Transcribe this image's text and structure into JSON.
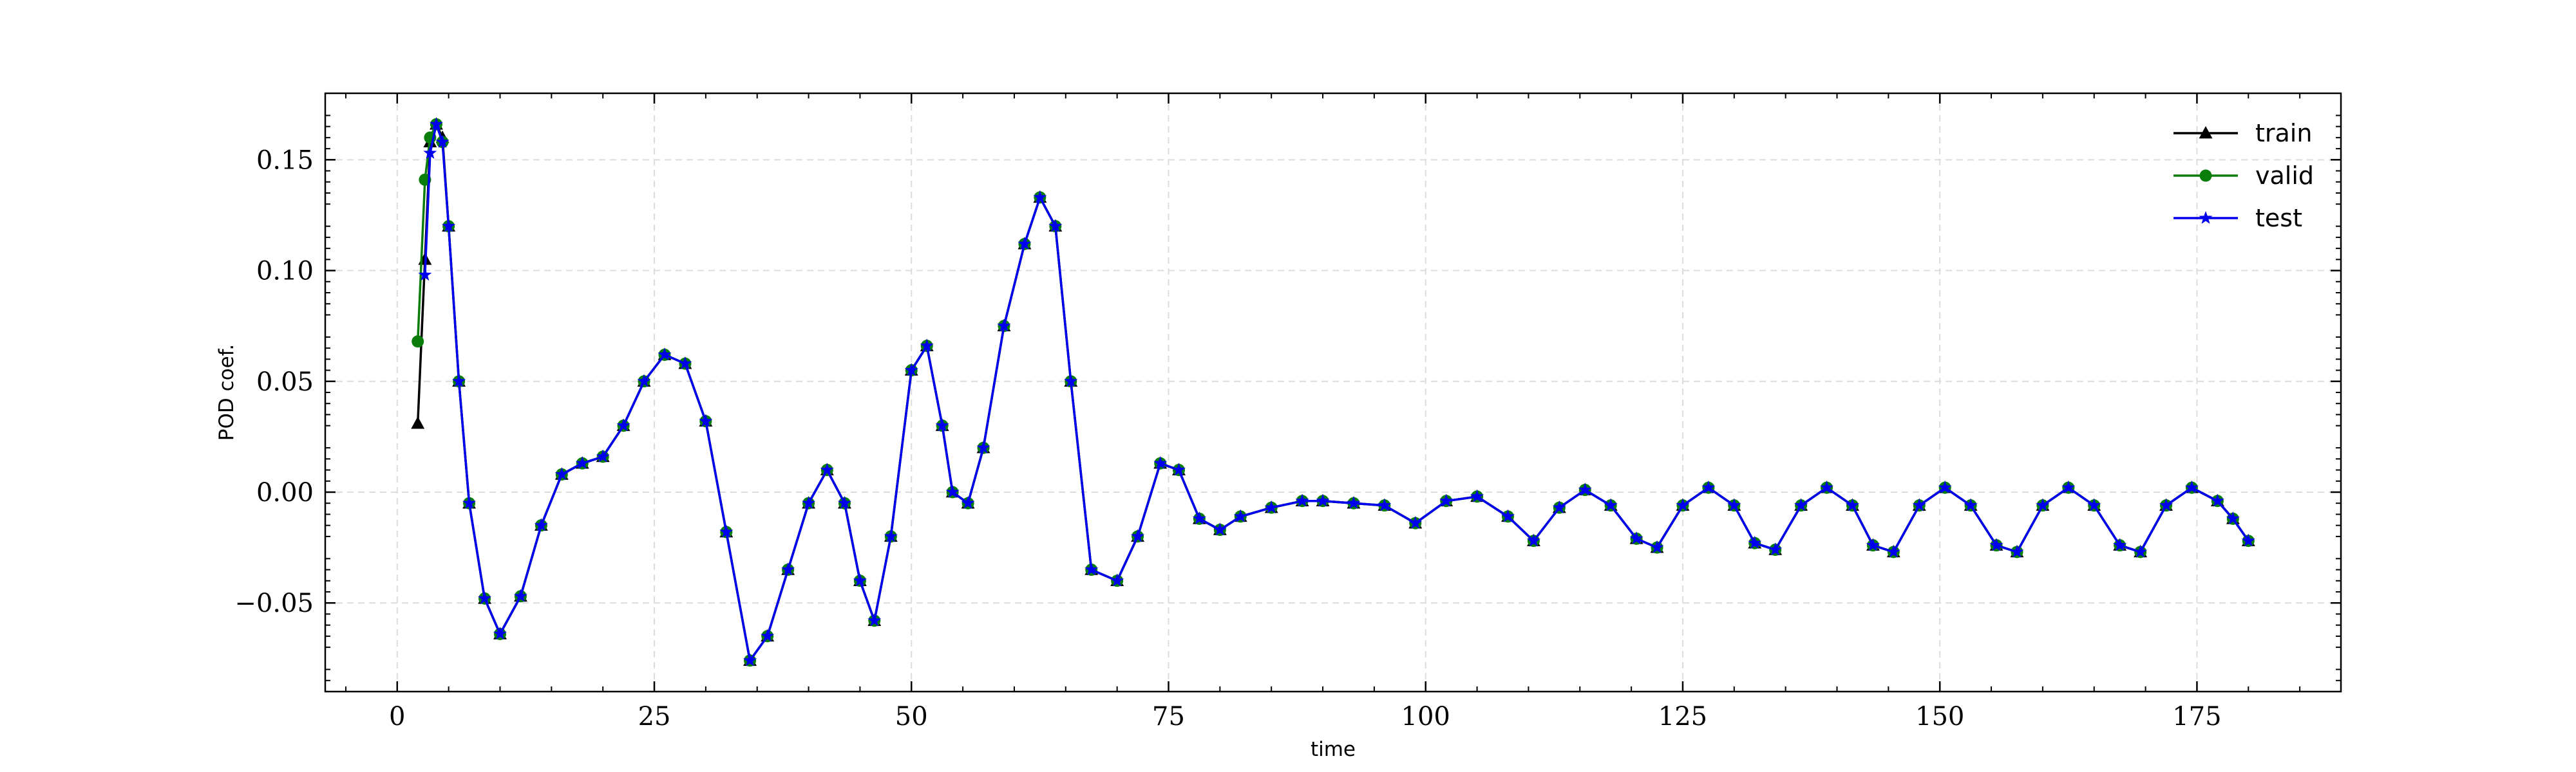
{
  "chart_data": {
    "type": "line",
    "xlabel": "time",
    "ylabel": "POD coef.",
    "xlim": [
      -7,
      189
    ],
    "ylim": [
      -0.09,
      0.18
    ],
    "xticks": [
      0,
      25,
      50,
      75,
      100,
      125,
      150,
      175
    ],
    "xtick_labels": [
      "0",
      "25",
      "50",
      "75",
      "100",
      "125",
      "150",
      "175"
    ],
    "yticks": [
      -0.05,
      0.0,
      0.05,
      0.1,
      0.15
    ],
    "ytick_labels": [
      "−0.05",
      "0.00",
      "0.05",
      "0.10",
      "0.15"
    ],
    "grid": true,
    "legend_position": "top-right",
    "series": [
      {
        "name": "train",
        "color": "#000000",
        "marker": "triangle",
        "x": [
          2.0,
          2.7,
          3.2,
          3.8,
          4.4,
          5.0,
          6.0,
          7.0,
          8.5,
          10.0,
          12.0,
          14.0,
          16.0,
          18.0,
          20.0,
          22.0,
          24.0,
          26.0,
          28.0,
          30.0,
          32.0,
          34.3,
          36.0,
          38.0,
          40.0,
          41.8,
          43.5,
          45.0,
          46.4,
          48.0,
          50.0,
          51.5,
          53.0,
          54.0,
          55.5,
          57.0,
          59.0,
          61.0,
          62.5,
          64.0,
          65.5,
          67.5,
          70.0,
          72.0,
          74.2,
          76.0,
          78.0,
          80.0,
          82.0,
          85.0,
          88.0,
          90.0,
          93.0,
          96.0,
          99.0,
          102.0,
          105.0,
          108.0,
          110.5,
          113.0,
          115.5,
          118.0,
          120.5,
          122.5,
          125.0,
          127.5,
          130.0,
          132.0,
          134.0,
          136.5,
          139.0,
          141.5,
          143.5,
          145.5,
          148.0,
          150.5,
          153.0,
          155.5,
          157.5,
          160.0,
          162.5,
          165.0,
          167.5,
          169.5,
          172.0,
          174.5,
          177.0,
          178.5,
          180.0
        ],
        "y": [
          0.031,
          0.105,
          0.158,
          0.166,
          0.16,
          0.12,
          0.05,
          -0.005,
          -0.048,
          -0.064,
          -0.047,
          -0.015,
          0.008,
          0.013,
          0.016,
          0.03,
          0.05,
          0.062,
          0.058,
          0.032,
          -0.018,
          -0.076,
          -0.065,
          -0.035,
          -0.005,
          0.01,
          -0.005,
          -0.04,
          -0.058,
          -0.02,
          0.055,
          0.066,
          0.03,
          0.0,
          -0.005,
          0.02,
          0.075,
          0.112,
          0.133,
          0.12,
          0.05,
          -0.035,
          -0.04,
          -0.02,
          0.013,
          0.01,
          -0.012,
          -0.017,
          -0.011,
          -0.007,
          -0.004,
          -0.004,
          -0.005,
          -0.006,
          -0.014,
          -0.004,
          -0.002,
          -0.011,
          -0.022,
          -0.007,
          0.001,
          -0.006,
          -0.021,
          -0.025,
          -0.006,
          0.002,
          -0.006,
          -0.023,
          -0.026,
          -0.006,
          0.002,
          -0.006,
          -0.024,
          -0.027,
          -0.006,
          0.002,
          -0.006,
          -0.024,
          -0.027,
          -0.006,
          0.002,
          -0.006,
          -0.024,
          -0.027,
          -0.006,
          0.002,
          -0.004,
          -0.012,
          -0.022
        ]
      },
      {
        "name": "valid",
        "color": "#0a7d0a",
        "marker": "circle",
        "x": [
          2.0,
          2.7,
          3.2,
          3.8,
          4.4,
          5.0,
          6.0,
          7.0,
          8.5,
          10.0,
          12.0,
          14.0,
          16.0,
          18.0,
          20.0,
          22.0,
          24.0,
          26.0,
          28.0,
          30.0,
          32.0,
          34.3,
          36.0,
          38.0,
          40.0,
          41.8,
          43.5,
          45.0,
          46.4,
          48.0,
          50.0,
          51.5,
          53.0,
          54.0,
          55.5,
          57.0,
          59.0,
          61.0,
          62.5,
          64.0,
          65.5,
          67.5,
          70.0,
          72.0,
          74.2,
          76.0,
          78.0,
          80.0,
          82.0,
          85.0,
          88.0,
          90.0,
          93.0,
          96.0,
          99.0,
          102.0,
          105.0,
          108.0,
          110.5,
          113.0,
          115.5,
          118.0,
          120.5,
          122.5,
          125.0,
          127.5,
          130.0,
          132.0,
          134.0,
          136.5,
          139.0,
          141.5,
          143.5,
          145.5,
          148.0,
          150.5,
          153.0,
          155.5,
          157.5,
          160.0,
          162.5,
          165.0,
          167.5,
          169.5,
          172.0,
          174.5,
          177.0,
          178.5,
          180.0
        ],
        "y": [
          0.068,
          0.141,
          0.16,
          0.166,
          0.158,
          0.12,
          0.05,
          -0.005,
          -0.048,
          -0.064,
          -0.047,
          -0.015,
          0.008,
          0.013,
          0.016,
          0.03,
          0.05,
          0.062,
          0.058,
          0.032,
          -0.018,
          -0.076,
          -0.065,
          -0.035,
          -0.005,
          0.01,
          -0.005,
          -0.04,
          -0.058,
          -0.02,
          0.055,
          0.066,
          0.03,
          0.0,
          -0.005,
          0.02,
          0.075,
          0.112,
          0.133,
          0.12,
          0.05,
          -0.035,
          -0.04,
          -0.02,
          0.013,
          0.01,
          -0.012,
          -0.017,
          -0.011,
          -0.007,
          -0.004,
          -0.004,
          -0.005,
          -0.006,
          -0.014,
          -0.004,
          -0.002,
          -0.011,
          -0.022,
          -0.007,
          0.001,
          -0.006,
          -0.021,
          -0.025,
          -0.006,
          0.002,
          -0.006,
          -0.023,
          -0.026,
          -0.006,
          0.002,
          -0.006,
          -0.024,
          -0.027,
          -0.006,
          0.002,
          -0.006,
          -0.024,
          -0.027,
          -0.006,
          0.002,
          -0.006,
          -0.024,
          -0.027,
          -0.006,
          0.002,
          -0.004,
          -0.012,
          -0.022
        ]
      },
      {
        "name": "test",
        "color": "#0000ee",
        "marker": "star",
        "x": [
          2.7,
          3.2,
          3.8,
          4.4,
          5.0,
          6.0,
          7.0,
          8.5,
          10.0,
          12.0,
          14.0,
          16.0,
          18.0,
          20.0,
          22.0,
          24.0,
          26.0,
          28.0,
          30.0,
          32.0,
          34.3,
          36.0,
          38.0,
          40.0,
          41.8,
          43.5,
          45.0,
          46.4,
          48.0,
          50.0,
          51.5,
          53.0,
          54.0,
          55.5,
          57.0,
          59.0,
          61.0,
          62.5,
          64.0,
          65.5,
          67.5,
          70.0,
          72.0,
          74.2,
          76.0,
          78.0,
          80.0,
          82.0,
          85.0,
          88.0,
          90.0,
          93.0,
          96.0,
          99.0,
          102.0,
          105.0,
          108.0,
          110.5,
          113.0,
          115.5,
          118.0,
          120.5,
          122.5,
          125.0,
          127.5,
          130.0,
          132.0,
          134.0,
          136.5,
          139.0,
          141.5,
          143.5,
          145.5,
          148.0,
          150.5,
          153.0,
          155.5,
          157.5,
          160.0,
          162.5,
          165.0,
          167.5,
          169.5,
          172.0,
          174.5,
          177.0,
          178.5,
          180.0
        ],
        "y": [
          0.098,
          0.153,
          0.166,
          0.158,
          0.12,
          0.05,
          -0.005,
          -0.048,
          -0.064,
          -0.047,
          -0.015,
          0.008,
          0.013,
          0.016,
          0.03,
          0.05,
          0.062,
          0.058,
          0.032,
          -0.018,
          -0.076,
          -0.065,
          -0.035,
          -0.005,
          0.01,
          -0.005,
          -0.04,
          -0.058,
          -0.02,
          0.055,
          0.066,
          0.03,
          0.0,
          -0.005,
          0.02,
          0.075,
          0.112,
          0.133,
          0.12,
          0.05,
          -0.035,
          -0.04,
          -0.02,
          0.013,
          0.01,
          -0.012,
          -0.017,
          -0.011,
          -0.007,
          -0.004,
          -0.004,
          -0.005,
          -0.006,
          -0.014,
          -0.004,
          -0.002,
          -0.011,
          -0.022,
          -0.007,
          0.001,
          -0.006,
          -0.021,
          -0.025,
          -0.006,
          0.002,
          -0.006,
          -0.023,
          -0.026,
          -0.006,
          0.002,
          -0.006,
          -0.024,
          -0.027,
          -0.006,
          0.002,
          -0.006,
          -0.024,
          -0.027,
          -0.006,
          0.002,
          -0.006,
          -0.024,
          -0.027,
          -0.006,
          0.002,
          -0.004,
          -0.012,
          -0.022
        ]
      }
    ]
  }
}
